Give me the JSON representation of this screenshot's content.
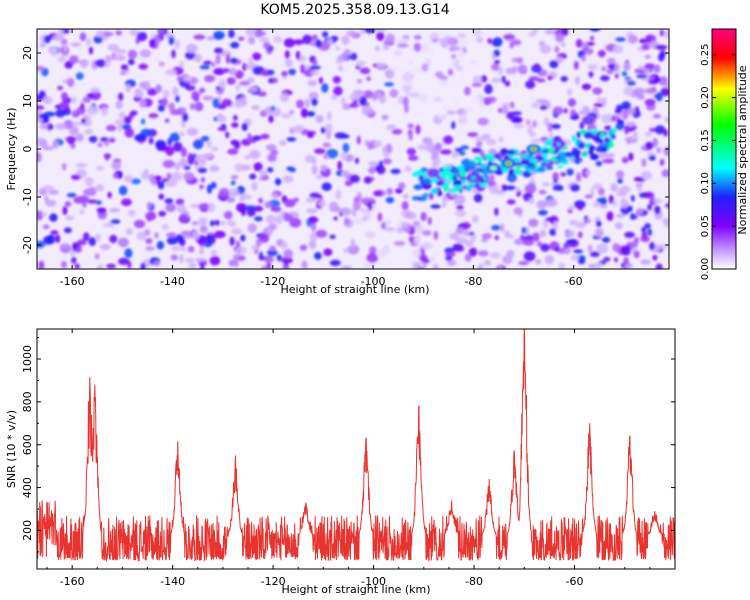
{
  "figure": {
    "title": "KOM5.2025.358.09.13.G14"
  },
  "chart_data": [
    {
      "type": "heatmap",
      "name": "spectrogram",
      "title": "KOM5.2025.358.09.13.G14",
      "xlabel": "Height of straight line (km)",
      "ylabel": "Frequency (Hz)",
      "xlim": [
        -167,
        -41
      ],
      "ylim": [
        -25,
        25
      ],
      "xticks": [
        -160,
        -140,
        -120,
        -100,
        -80,
        -60
      ],
      "yticks": [
        -20,
        -10,
        0,
        10,
        20
      ],
      "colorbar": {
        "label": "Normalized spectral amplitude",
        "range": [
          0,
          0.28
        ],
        "ticks": [
          0.0,
          0.05,
          0.1,
          0.15,
          0.2,
          0.25
        ],
        "tick_labels": [
          "0.00",
          "0.05",
          "0.10",
          "0.15",
          "0.20",
          "0.25"
        ],
        "colors": [
          "#ffffff",
          "#7f00ff",
          "#0000ff",
          "#00ffff",
          "#00ff00",
          "#ffff00",
          "#ff0000",
          "#ff00ff"
        ]
      },
      "features": [
        {
          "x": -80,
          "y": -6,
          "amplitude": 0.15
        },
        {
          "x": -76,
          "y": -4,
          "amplitude": 0.2
        },
        {
          "x": -73,
          "y": -3,
          "amplitude": 0.25
        },
        {
          "x": -68,
          "y": 0,
          "amplitude": 0.26
        },
        {
          "x": -63,
          "y": 1,
          "amplitude": 0.12
        },
        {
          "x": -88,
          "y": -5,
          "amplitude": 0.1
        },
        {
          "x": -57,
          "y": 6,
          "amplitude": 0.1
        }
      ]
    },
    {
      "type": "line",
      "name": "snr",
      "xlabel": "Height of straight line (km)",
      "ylabel": "SNR (10 * v/v)",
      "xlim": [
        -167,
        -40
      ],
      "ylim": [
        20,
        1140
      ],
      "xticks": [
        -160,
        -140,
        -120,
        -100,
        -80,
        -60
      ],
      "yticks": [
        200,
        400,
        600,
        800,
        1000
      ],
      "color": "#e8332f",
      "peaks": [
        {
          "x": -156.5,
          "y": 915
        },
        {
          "x": -155.5,
          "y": 880
        },
        {
          "x": -139,
          "y": 615
        },
        {
          "x": -127.5,
          "y": 550
        },
        {
          "x": -113.5,
          "y": 330
        },
        {
          "x": -101.5,
          "y": 630
        },
        {
          "x": -91,
          "y": 780
        },
        {
          "x": -84.5,
          "y": 340
        },
        {
          "x": -77,
          "y": 440
        },
        {
          "x": -72,
          "y": 570
        },
        {
          "x": -70,
          "y": 1140
        },
        {
          "x": -57,
          "y": 700
        },
        {
          "x": -49,
          "y": 640
        },
        {
          "x": -44,
          "y": 290
        }
      ]
    }
  ]
}
